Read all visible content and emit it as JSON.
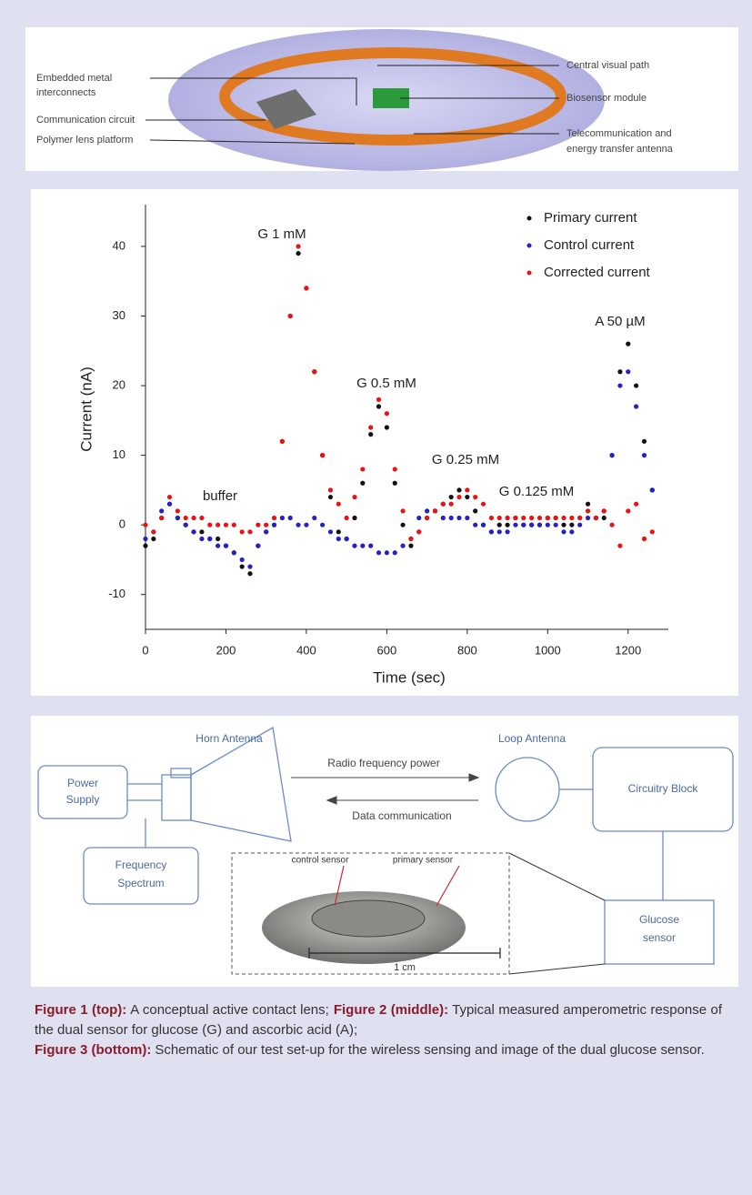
{
  "figure1": {
    "labels": [
      {
        "lines": [
          "Embedded metal",
          "interconnects"
        ]
      },
      {
        "lines": [
          "Communication circuit"
        ]
      },
      {
        "lines": [
          "Polymer lens platform"
        ]
      },
      {
        "lines": [
          "Central visual path"
        ]
      },
      {
        "lines": [
          "Biosensor module"
        ]
      },
      {
        "lines": [
          "Telecommunication and",
          "energy transfer antenna"
        ]
      }
    ]
  },
  "chart_data": {
    "type": "scatter",
    "xlabel": "Time (sec)",
    "ylabel": "Current (nA)",
    "x": [
      0,
      20,
      40,
      60,
      80,
      100,
      120,
      140,
      160,
      180,
      200,
      220,
      240,
      260,
      280,
      300,
      320,
      340,
      360,
      380,
      400,
      420,
      440,
      460,
      480,
      500,
      520,
      540,
      560,
      580,
      600,
      620,
      640,
      660,
      680,
      700,
      720,
      740,
      760,
      780,
      800,
      820,
      840,
      860,
      880,
      900,
      920,
      940,
      960,
      980,
      1000,
      1020,
      1040,
      1060,
      1080,
      1100,
      1120,
      1140,
      1160,
      1180,
      1200,
      1220,
      1240,
      1260
    ],
    "series": [
      {
        "name": "Primary current",
        "color": "#111111",
        "values": [
          -3,
          -2,
          1,
          3,
          1,
          0,
          -1,
          -1,
          -2,
          -2,
          -3,
          -4,
          -6,
          -7,
          -3,
          -1,
          0,
          12,
          30,
          39,
          34,
          22,
          10,
          4,
          -1,
          -2,
          1,
          6,
          13,
          17,
          14,
          6,
          0,
          -3,
          -1,
          1,
          2,
          3,
          4,
          5,
          4,
          2,
          0,
          -1,
          0,
          0,
          1,
          0,
          0,
          0,
          1,
          1,
          0,
          0,
          1,
          3,
          1,
          1,
          10,
          22,
          26,
          20,
          12,
          5
        ]
      },
      {
        "name": "Control current",
        "color": "#2222cc",
        "values": [
          -2,
          -1,
          2,
          3,
          1,
          0,
          -1,
          -2,
          -2,
          -3,
          -3,
          -4,
          -5,
          -6,
          -3,
          -1,
          0,
          1,
          1,
          0,
          0,
          1,
          0,
          -1,
          -2,
          -2,
          -3,
          -3,
          -3,
          -4,
          -4,
          -4,
          -3,
          -2,
          1,
          2,
          2,
          1,
          1,
          1,
          1,
          0,
          0,
          -1,
          -1,
          -1,
          0,
          0,
          0,
          0,
          0,
          0,
          -1,
          -1,
          0,
          1,
          1,
          2,
          10,
          20,
          22,
          17,
          10,
          5
        ]
      },
      {
        "name": "Corrected current",
        "color": "#ee1111",
        "values": [
          0,
          -1,
          1,
          4,
          2,
          1,
          1,
          1,
          0,
          0,
          0,
          0,
          -1,
          -1,
          0,
          0,
          1,
          12,
          30,
          40,
          34,
          22,
          10,
          5,
          3,
          1,
          4,
          8,
          14,
          18,
          16,
          8,
          2,
          -2,
          -1,
          1,
          2,
          3,
          3,
          4,
          5,
          4,
          3,
          1,
          1,
          1,
          1,
          1,
          1,
          1,
          1,
          1,
          1,
          1,
          1,
          2,
          1,
          2,
          0,
          -3,
          2,
          3,
          -2,
          -1
        ]
      }
    ],
    "xlim": [
      0,
      1300
    ],
    "xticks": [
      0,
      200,
      400,
      600,
      800,
      1000,
      1200
    ],
    "ylim": [
      -15,
      46
    ],
    "yticks": [
      -10,
      0,
      10,
      20,
      30,
      40
    ],
    "annotations": [
      "G 1 mM",
      "buffer",
      "G 0.5 mM",
      "G 0.25 mM",
      "G 0.125 mM",
      "A 50 µM"
    ],
    "legend": "upper right"
  },
  "figure3": {
    "blocks": [
      {
        "lines": [
          "Power",
          "Supply"
        ]
      },
      {
        "lines": [
          "Horn Antenna"
        ]
      },
      {
        "lines": [
          "Radio frequency power"
        ]
      },
      {
        "lines": [
          "Data communication"
        ]
      },
      {
        "lines": [
          "Loop Antenna"
        ]
      },
      {
        "lines": [
          "Circuitry Block"
        ]
      },
      {
        "lines": [
          "Frequency",
          "Spectrum"
        ]
      },
      {
        "lines": [
          "control sensor"
        ]
      },
      {
        "lines": [
          "primary sensor"
        ]
      },
      {
        "lines": [
          "Glucose",
          "sensor"
        ]
      },
      {
        "lines": [
          "1 cm"
        ]
      }
    ]
  },
  "caption": [
    {
      "label": "Figure 1 (top):",
      "text": "A conceptual active contact lens;"
    },
    {
      "label": "Figure 2 (middle):",
      "text": "Typical measured amperometric response of the dual sensor for glucose (G) and ascorbic acid (A);"
    },
    {
      "label": "Figure 3 (bottom):",
      "text": "Schematic of our test set-up for the wireless sensing and image of the dual glucose sensor."
    }
  ]
}
